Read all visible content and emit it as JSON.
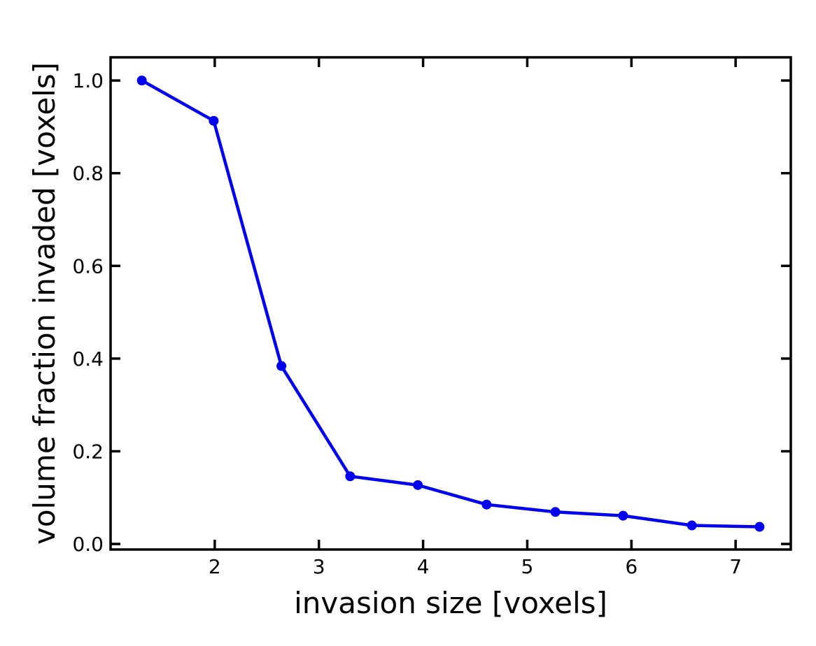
{
  "chart_data": {
    "type": "line",
    "title": "",
    "xlabel": "invasion size [voxels]",
    "ylabel": "volume fraction invaded [voxels]",
    "xlim": [
      1.0,
      7.53
    ],
    "ylim": [
      -0.012,
      1.05
    ],
    "xticks": [
      "2",
      "3",
      "4",
      "5",
      "6",
      "7"
    ],
    "xtick_values": [
      2,
      3,
      4,
      5,
      6,
      7
    ],
    "yticks": [
      "0.0",
      "0.2",
      "0.4",
      "0.6",
      "0.8",
      "1.0"
    ],
    "ytick_values": [
      0.0,
      0.2,
      0.4,
      0.6,
      0.8,
      1.0
    ],
    "grid": false,
    "series": [
      {
        "color": "#0000ee",
        "x": [
          1.3,
          1.99,
          2.64,
          3.3,
          3.95,
          4.61,
          5.27,
          5.92,
          6.58,
          7.23
        ],
        "y": [
          1.0,
          0.913,
          0.384,
          0.146,
          0.127,
          0.085,
          0.069,
          0.061,
          0.04,
          0.037
        ]
      }
    ]
  }
}
